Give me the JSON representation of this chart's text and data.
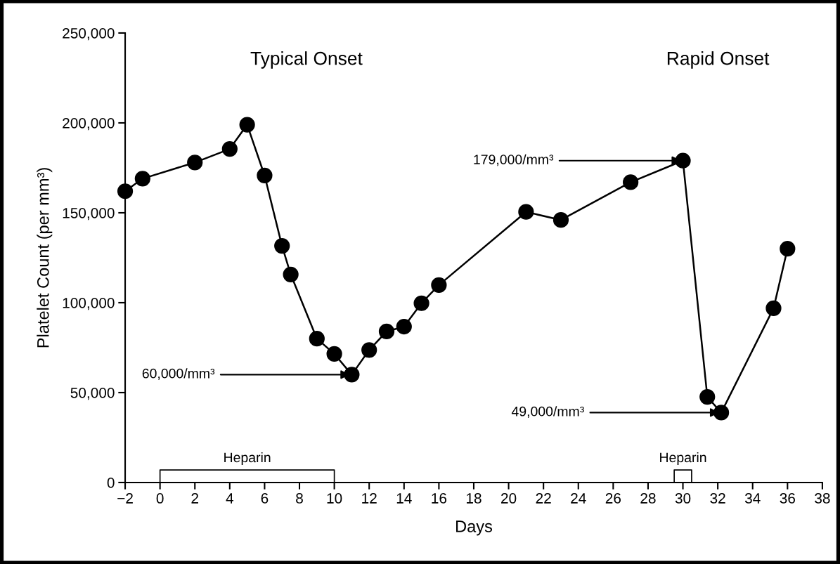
{
  "chart_data": {
    "type": "line",
    "xlabel": "Days",
    "ylabel": "Platelet Count (per mm³)",
    "x": [
      -2,
      -1,
      2,
      4,
      5,
      6,
      7,
      7.5,
      9,
      10,
      11,
      12,
      13,
      14,
      15,
      16,
      21,
      23,
      27,
      30,
      31.4,
      32.2,
      35.2,
      36
    ],
    "series": [
      {
        "color": "#000000",
        "values": [
          162000,
          169000,
          178000,
          185500,
          199000,
          170700,
          131600,
          115700,
          80000,
          71500,
          60000,
          73700,
          84000,
          86700,
          99700,
          109800,
          150500,
          146000,
          167000,
          179000,
          47600,
          38900,
          96900,
          130000
        ]
      },
      {
        "color": "#000000",
        "marker": "none",
        "x": [
          0,
          0,
          10,
          10
        ],
        "values": [
          0,
          7000,
          7000,
          0
        ]
      },
      {
        "color": "#000000",
        "marker": "none",
        "x": [
          29.5,
          29.5,
          30.5,
          30.5
        ],
        "values": [
          0,
          7000,
          7000,
          0
        ]
      }
    ],
    "marker": "circle",
    "line_style": "solid",
    "grid": false,
    "legend": false,
    "xlim": [
      -2,
      38
    ],
    "xticks": [
      {
        "value": -2,
        "label": "−2"
      },
      0,
      2,
      4,
      6,
      8,
      10,
      12,
      14,
      16,
      18,
      20,
      22,
      24,
      26,
      28,
      30,
      32,
      34,
      36,
      38
    ],
    "ylim": [
      0,
      250000
    ],
    "yticks": [
      0,
      {
        "value": 50000,
        "label": "50,000"
      },
      {
        "value": 100000,
        "label": "100,000"
      },
      {
        "value": 150000,
        "label": "150,000"
      },
      {
        "value": 200000,
        "label": "200,000"
      },
      {
        "value": 250000,
        "label": "250,000"
      }
    ],
    "annotations": [
      "Typical Onset",
      "Rapid Onset",
      {
        "text": "60,000/mm³",
        "x": 11,
        "y": 60000
      },
      {
        "text": "179,000/mm³",
        "x": 30,
        "y": 179000
      },
      {
        "text": "49,000/mm³",
        "x": 32.2,
        "y": 38900
      },
      {
        "text": "Heparin",
        "x": 5,
        "y": 7000
      },
      {
        "text": "Heparin",
        "x": 30,
        "y": 7000
      }
    ]
  }
}
